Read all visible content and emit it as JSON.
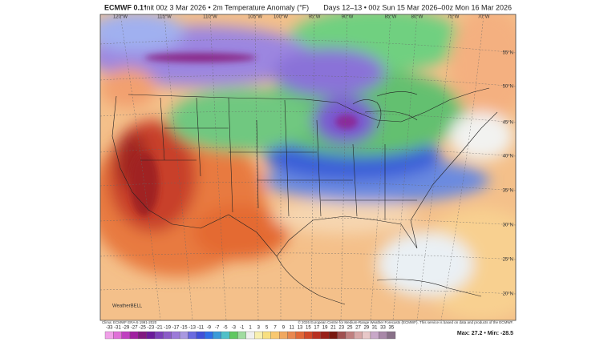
{
  "header": {
    "model": "ECMWF 0.1°",
    "title": "Init 00z 3 Mar 2026 • 2m Temperature Anomaly (°F)",
    "valid": "Days 12–13 • 00z Sun 15 Mar 2026–00z Mon 16 Mar 2026"
  },
  "map": {
    "lon_labels": [
      "120°W",
      "115°W",
      "110°W",
      "105°W",
      "100°W",
      "95°W",
      "90°W",
      "85°W",
      "80°W",
      "75°W",
      "70°W"
    ],
    "lat_labels": [
      "55°N",
      "50°N",
      "45°N",
      "40°N",
      "35°N",
      "30°N",
      "25°N",
      "20°N"
    ],
    "logo": "WeatherBELL"
  },
  "footer": {
    "climo": "Clima: ECMWF ERA-5 1991-2020",
    "credit": "© 2026 European Centre for Medium-Range Weather Forecasts (ECMWF). This service is based on data and products of the ECMWF.",
    "stats": "Max: 27.2 • Min: -28.5"
  },
  "colorbar": {
    "ticks": [
      -33,
      -31,
      -29,
      -27,
      -25,
      -23,
      -21,
      -19,
      -17,
      -15,
      -13,
      -11,
      -9,
      -7,
      -5,
      -3,
      -1,
      1,
      3,
      5,
      7,
      9,
      11,
      13,
      15,
      17,
      19,
      21,
      23,
      25,
      27,
      29,
      31,
      33,
      35
    ],
    "colors": [
      "#f0a0e8",
      "#e070d8",
      "#c040c0",
      "#a020a0",
      "#801880",
      "#6a1a9a",
      "#7b3fb8",
      "#8c5cc8",
      "#9c7ad8",
      "#a898e0",
      "#6a6ae0",
      "#4050d8",
      "#2f6ee8",
      "#3a9ad8",
      "#50c0c8",
      "#60c860",
      "#a0dca0",
      "#f0f0f0",
      "#f8f0b0",
      "#f8e080",
      "#f8c870",
      "#f0a860",
      "#e88850",
      "#e06838",
      "#d04828",
      "#b83020",
      "#982018",
      "#781810",
      "#a05050",
      "#c08080",
      "#d8a8a8",
      "#e8c8c8",
      "#c8a8c8",
      "#a888a8",
      "#887088"
    ]
  }
}
